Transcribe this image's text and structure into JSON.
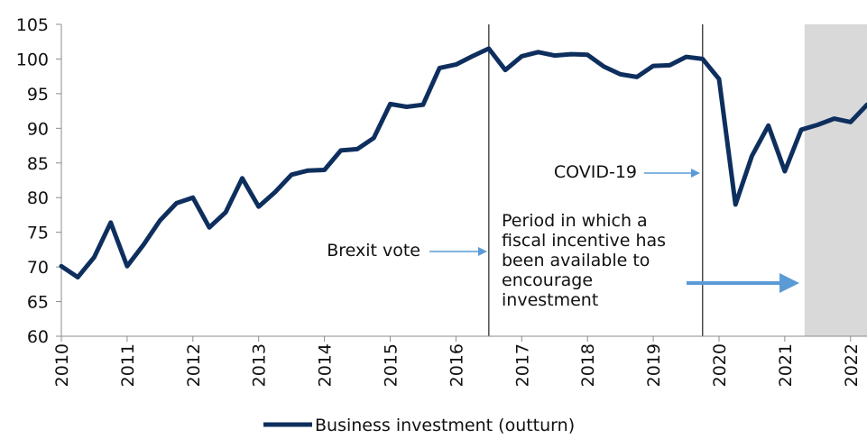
{
  "chart_data": {
    "type": "line",
    "title": "",
    "xlabel": "",
    "ylabel": "",
    "ylim": [
      60,
      105
    ],
    "yticks": [
      60,
      65,
      70,
      75,
      80,
      85,
      90,
      95,
      100,
      105
    ],
    "x_range": [
      2010,
      2022.25
    ],
    "xticks": [
      "2010",
      "2011",
      "2012",
      "2013",
      "2014",
      "2015",
      "2016",
      "2017",
      "2018",
      "2019",
      "2020",
      "2021",
      "2022"
    ],
    "grid": false,
    "legend_position": "bottom",
    "series": [
      {
        "name": "Business investment (outturn)",
        "color": "#0e2f5e",
        "x": [
          2010.0,
          2010.25,
          2010.5,
          2010.75,
          2011.0,
          2011.25,
          2011.5,
          2011.75,
          2012.0,
          2012.25,
          2012.5,
          2012.75,
          2013.0,
          2013.25,
          2013.5,
          2013.75,
          2014.0,
          2014.25,
          2014.5,
          2014.75,
          2015.0,
          2015.25,
          2015.5,
          2015.75,
          2016.0,
          2016.25,
          2016.5,
          2016.75,
          2017.0,
          2017.25,
          2017.5,
          2017.75,
          2018.0,
          2018.25,
          2018.5,
          2018.75,
          2019.0,
          2019.25,
          2019.5,
          2019.75,
          2020.0,
          2020.25,
          2020.5,
          2020.75,
          2021.0,
          2021.25,
          2021.5,
          2021.75,
          2022.0,
          2022.25
        ],
        "values": [
          70.1,
          68.5,
          71.4,
          76.4,
          70.1,
          73.2,
          76.7,
          79.2,
          80.0,
          75.7,
          77.9,
          82.8,
          78.7,
          80.8,
          83.3,
          83.9,
          84.0,
          86.8,
          87.0,
          88.6,
          93.5,
          93.1,
          93.4,
          98.7,
          99.2,
          100.4,
          101.5,
          98.4,
          100.4,
          101.0,
          100.5,
          100.7,
          100.6,
          98.9,
          97.8,
          97.4,
          99.0,
          99.1,
          100.3,
          100.0,
          97.1,
          79.0,
          86.0,
          90.4,
          83.8,
          89.8,
          90.5,
          91.4,
          90.9,
          93.4
        ]
      }
    ],
    "shaded_region": {
      "from": 2021.3,
      "to": 2022.25,
      "color": "#d9d9d9"
    },
    "vertical_lines": [
      2016.5,
      2019.75
    ],
    "annotations": [
      {
        "id": "brexit",
        "lines": [
          "Brexit vote"
        ]
      },
      {
        "id": "covid",
        "lines": [
          "COVID-19"
        ]
      },
      {
        "id": "fiscal",
        "lines": [
          "Period in which a",
          "fiscal incentive has",
          "been available to",
          "encourage",
          "investment"
        ]
      }
    ],
    "legend_label": "Business investment (outturn)",
    "arrow_color": "#5b9bd5"
  }
}
